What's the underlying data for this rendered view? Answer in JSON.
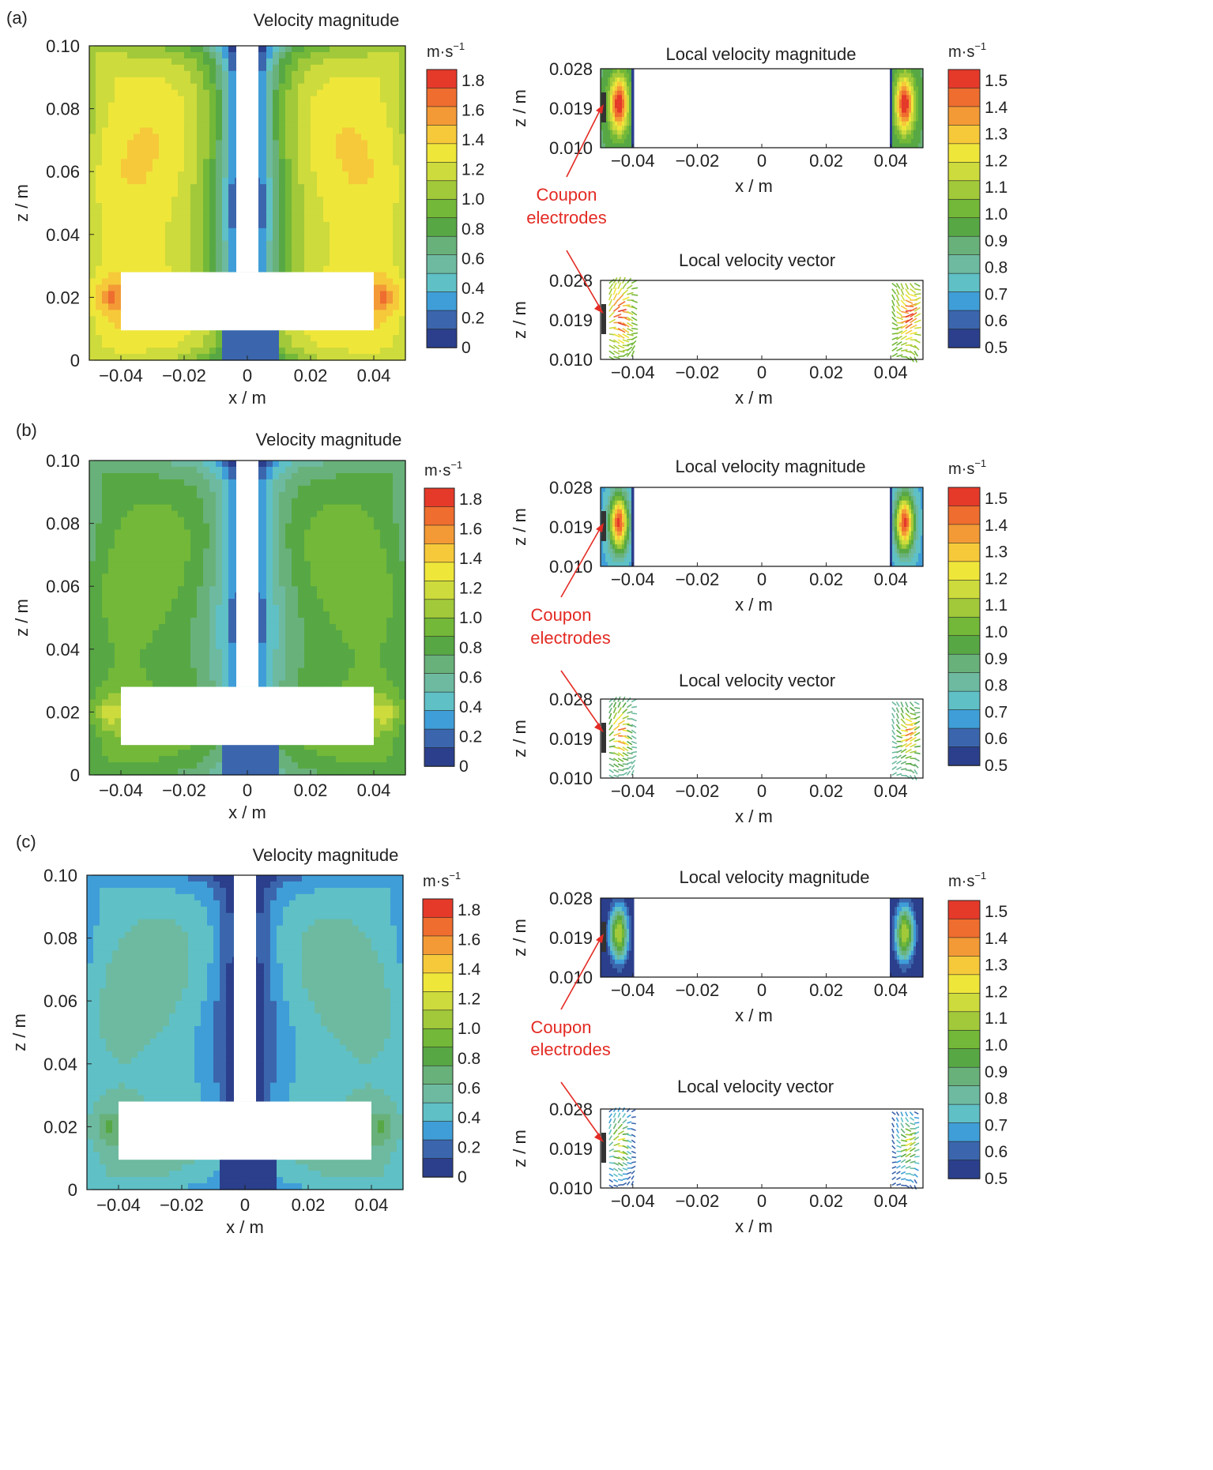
{
  "panels": [
    {
      "label": "(a)",
      "case": "a"
    },
    {
      "label": "(b)",
      "case": "b"
    },
    {
      "label": "(c)",
      "case": "c"
    }
  ],
  "labels": {
    "x_axis": "x / m",
    "z_axis": "z / m",
    "unit": "m·s",
    "unit_exp": "−1",
    "annotation": [
      "Coupon",
      "electrodes"
    ]
  },
  "colors": {
    "annotation_red": "#e32b24",
    "electrode": "#333333",
    "frame": "#111111"
  },
  "chart_data": [
    {
      "type": "heatmap",
      "title": "Velocity magnitude",
      "panel": "(a)",
      "xlabel": "x / m",
      "ylabel": "z / m",
      "xlim": [
        -0.05,
        0.05
      ],
      "ylim": [
        0,
        0.1
      ],
      "xticks": [
        "−0.04",
        "−0.02",
        "0",
        "0.02",
        "0.04"
      ],
      "yticks": [
        "0",
        "0.02",
        "0.04",
        "0.06",
        "0.08",
        "0.10"
      ],
      "colorbar": {
        "unit": "m·s⁻¹",
        "range": [
          0,
          1.9
        ],
        "labels": [
          "1.8",
          "1.6",
          "1.4",
          "1.2",
          "1.0",
          "0.8",
          "0.6",
          "0.4",
          "0.2",
          "0"
        ]
      },
      "field": {
        "core_velocity": 1.4,
        "near_wall_velocity": 1.1,
        "impeller_tip_peak": 1.8,
        "shaft_region_velocity": 0.3
      }
    },
    {
      "type": "heatmap",
      "title": "Local velocity magnitude",
      "panel": "(a)",
      "xlabel": "x / m",
      "ylabel": "z / m",
      "xlim": [
        -0.05,
        0.05
      ],
      "ylim": [
        0.01,
        0.028
      ],
      "xticks": [
        "−0.04",
        "−0.02",
        "0",
        "0.02",
        "0.04"
      ],
      "yticks": [
        "0.028",
        "0.019",
        "0.010"
      ],
      "colorbar": {
        "unit": "m·s⁻¹",
        "range": [
          0.5,
          1.5
        ],
        "labels": [
          "1.5",
          "1.4",
          "1.3",
          "1.2",
          "1.1",
          "1.0",
          "0.9",
          "0.8",
          "0.7",
          "0.6",
          "0.5"
        ]
      },
      "field": {
        "peak_velocity": 1.5,
        "edge_velocity": 1.05
      }
    },
    {
      "type": "scatter",
      "title": "Local velocity vector",
      "panel": "(a)",
      "xlabel": "x / m",
      "ylabel": "z / m",
      "xlim": [
        -0.05,
        0.05
      ],
      "ylim": [
        0.01,
        0.028
      ],
      "xticks": [
        "−0.04",
        "−0.02",
        "0",
        "0.02",
        "0.04"
      ],
      "yticks": [
        "0.028",
        "0.019",
        "0.010"
      ],
      "field": {
        "peak_velocity": 1.5,
        "edge_velocity": 1.0
      }
    },
    {
      "type": "heatmap",
      "title": "Velocity magnitude",
      "panel": "(b)",
      "xlabel": "x / m",
      "ylabel": "z / m",
      "xlim": [
        -0.05,
        0.05
      ],
      "ylim": [
        0,
        0.1
      ],
      "xticks": [
        "−0.04",
        "−0.02",
        "0",
        "0.02",
        "0.04"
      ],
      "yticks": [
        "0",
        "0.02",
        "0.04",
        "0.06",
        "0.08",
        "0.10"
      ],
      "colorbar": {
        "unit": "m·s⁻¹",
        "range": [
          0,
          1.9
        ],
        "labels": [
          "1.8",
          "1.6",
          "1.4",
          "1.2",
          "1.0",
          "0.8",
          "0.6",
          "0.4",
          "0.2",
          "0"
        ]
      },
      "field": {
        "core_velocity": 0.95,
        "near_wall_velocity": 0.7,
        "impeller_tip_peak": 1.4,
        "shaft_region_velocity": 0.3
      }
    },
    {
      "type": "heatmap",
      "title": "Local velocity magnitude",
      "panel": "(b)",
      "xlabel": "x / m",
      "ylabel": "z / m",
      "xlim": [
        -0.05,
        0.05
      ],
      "ylim": [
        0.01,
        0.028
      ],
      "xticks": [
        "−0.04",
        "−0.02",
        "0",
        "0.02",
        "0.04"
      ],
      "yticks": [
        "0.028",
        "0.019",
        "0.010"
      ],
      "colorbar": {
        "unit": "m·s⁻¹",
        "range": [
          0.5,
          1.5
        ],
        "labels": [
          "1.5",
          "1.4",
          "1.3",
          "1.2",
          "1.1",
          "1.0",
          "0.9",
          "0.8",
          "0.7",
          "0.6",
          "0.5"
        ]
      },
      "field": {
        "peak_velocity": 1.45,
        "edge_velocity": 0.8
      }
    },
    {
      "type": "scatter",
      "title": "Local velocity vector",
      "panel": "(b)",
      "xlabel": "x / m",
      "ylabel": "z / m",
      "xlim": [
        -0.05,
        0.05
      ],
      "ylim": [
        0.01,
        0.028
      ],
      "xticks": [
        "−0.04",
        "−0.02",
        "0",
        "0.02",
        "0.04"
      ],
      "yticks": [
        "0.028",
        "0.019",
        "0.010"
      ],
      "field": {
        "peak_velocity": 1.4,
        "edge_velocity": 0.8
      }
    },
    {
      "type": "heatmap",
      "title": "Velocity magnitude",
      "panel": "(c)",
      "xlabel": "x / m",
      "ylabel": "z / m",
      "xlim": [
        -0.05,
        0.05
      ],
      "ylim": [
        0,
        0.1
      ],
      "xticks": [
        "−0.04",
        "−0.02",
        "0",
        "0.02",
        "0.04"
      ],
      "yticks": [
        "0",
        "0.02",
        "0.04",
        "0.06",
        "0.08",
        "0.10"
      ],
      "colorbar": {
        "unit": "m·s⁻¹",
        "range": [
          0,
          1.9
        ],
        "labels": [
          "1.8",
          "1.6",
          "1.4",
          "1.2",
          "1.0",
          "0.8",
          "0.6",
          "0.4",
          "0.2",
          "0"
        ]
      },
      "field": {
        "core_velocity": 0.55,
        "near_wall_velocity": 0.35,
        "impeller_tip_peak": 0.95,
        "shaft_region_velocity": 0.1
      }
    },
    {
      "type": "heatmap",
      "title": "Local velocity magnitude",
      "panel": "(c)",
      "xlabel": "x / m",
      "ylabel": "z / m",
      "xlim": [
        -0.05,
        0.05
      ],
      "ylim": [
        0.01,
        0.028
      ],
      "xticks": [
        "−0.04",
        "−0.02",
        "0",
        "0.02",
        "0.04"
      ],
      "yticks": [
        "0.028",
        "0.019",
        "0.010"
      ],
      "colorbar": {
        "unit": "m·s⁻¹",
        "range": [
          0.5,
          1.5
        ],
        "labels": [
          "1.5",
          "1.4",
          "1.3",
          "1.2",
          "1.1",
          "1.0",
          "0.9",
          "0.8",
          "0.7",
          "0.6",
          "0.5"
        ]
      },
      "field": {
        "peak_velocity": 1.1,
        "edge_velocity": 0.55
      }
    },
    {
      "type": "scatter",
      "title": "Local velocity vector",
      "panel": "(c)",
      "xlabel": "x / m",
      "ylabel": "z / m",
      "xlim": [
        -0.05,
        0.05
      ],
      "ylim": [
        0.01,
        0.028
      ],
      "xticks": [
        "−0.04",
        "−0.02",
        "0",
        "0.02",
        "0.04"
      ],
      "yticks": [
        "0.028",
        "0.019",
        "0.010"
      ],
      "field": {
        "peak_velocity": 1.2,
        "edge_velocity": 0.6
      }
    }
  ]
}
